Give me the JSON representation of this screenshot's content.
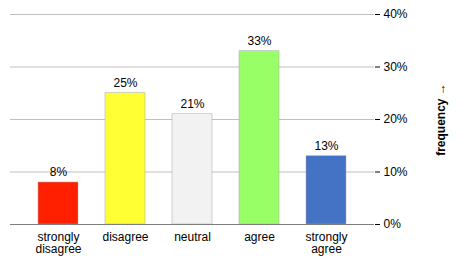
{
  "chart_data": {
    "type": "bar",
    "categories": [
      "strongly disagree",
      "disagree",
      "neutral",
      "agree",
      "strongly agree"
    ],
    "values": [
      8,
      25,
      21,
      33,
      13
    ],
    "value_labels": [
      "8%",
      "25%",
      "21%",
      "33%",
      "13%"
    ],
    "colors": [
      "#ff2000",
      "#ffff33",
      "#f2f2f2",
      "#99ff66",
      "#4472c4"
    ],
    "ylim": [
      0,
      40
    ],
    "yticks": [
      {
        "value": 0,
        "label": "0%"
      },
      {
        "value": 10,
        "label": "10%"
      },
      {
        "value": 20,
        "label": "20%"
      },
      {
        "value": 30,
        "label": "30%"
      },
      {
        "value": 40,
        "label": "40%"
      }
    ],
    "y_label": "frequency",
    "grid": true,
    "data_labels": true
  }
}
